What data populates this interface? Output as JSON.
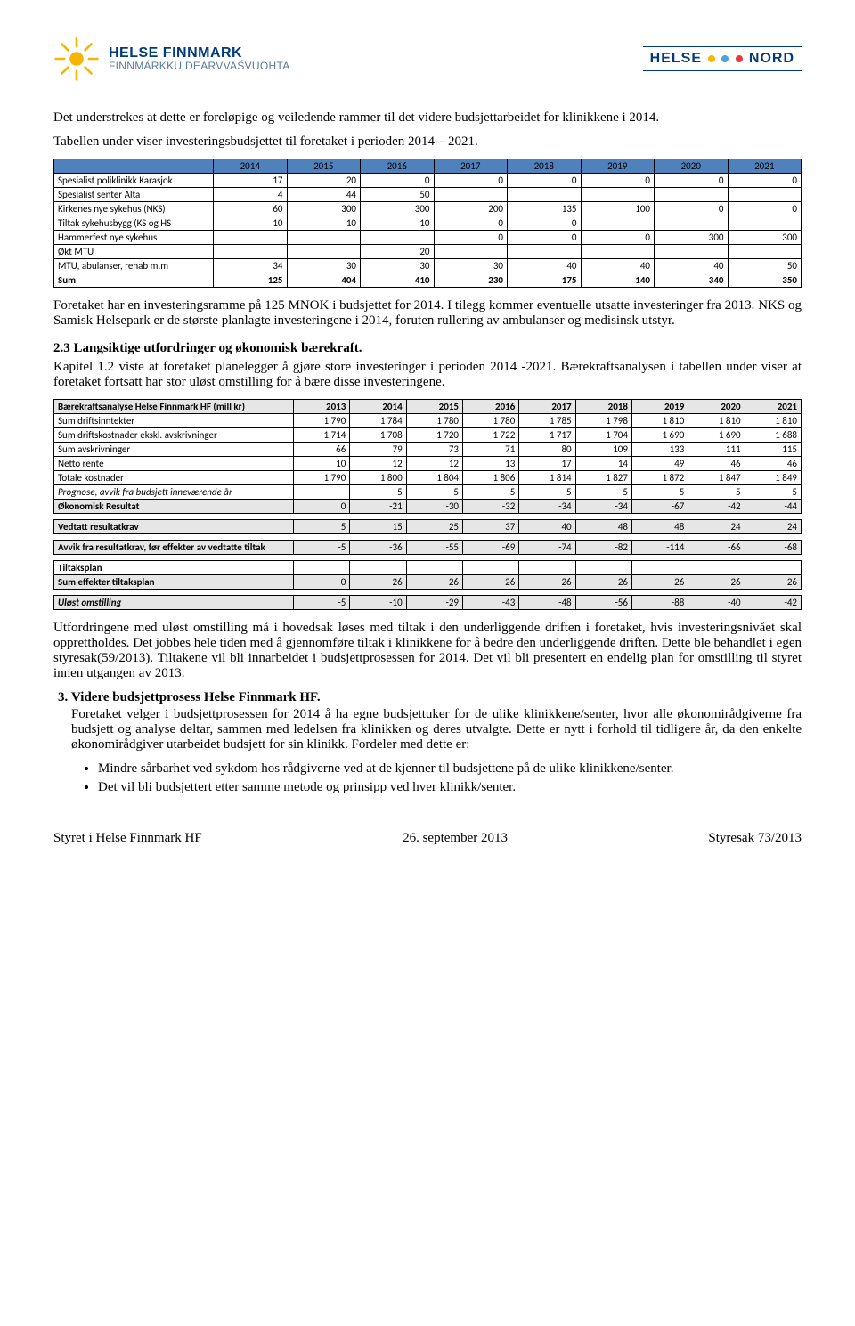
{
  "brand": {
    "title": "HELSE FINNMARK",
    "subtitle": "FINNMÁRKKU DEARVVAŠVUOHTA",
    "right_a": "HELSE",
    "right_b": "NORD",
    "dot_colors": [
      "#f7b500",
      "#4aa3df",
      "#e63946"
    ]
  },
  "p1": "Det understrekes at dette er foreløpige og veiledende rammer til det videre budsjettarbeidet for klinikkene i 2014.",
  "p2": "Tabellen under viser investeringsbudsjettet til foretaket i perioden 2014 – 2021.",
  "t1": {
    "years": [
      "2014",
      "2015",
      "2016",
      "2017",
      "2018",
      "2019",
      "2020",
      "2021"
    ],
    "rows": [
      {
        "label": "Spesialist poliklinikk Karasjok",
        "v": [
          "17",
          "20",
          "0",
          "0",
          "0",
          "0",
          "0",
          "0"
        ]
      },
      {
        "label": "Spesialist senter Alta",
        "v": [
          "4",
          "44",
          "50",
          "",
          "",
          "",
          "",
          ""
        ]
      },
      {
        "label": "Kirkenes nye sykehus (NKS)",
        "v": [
          "60",
          "300",
          "300",
          "200",
          "135",
          "100",
          "0",
          "0"
        ]
      },
      {
        "label": "Tiltak sykehusbygg (KS og HS",
        "v": [
          "10",
          "10",
          "10",
          "0",
          "0",
          "",
          "",
          ""
        ]
      },
      {
        "label": "Hammerfest nye sykehus",
        "v": [
          "",
          "",
          "",
          "0",
          "0",
          "0",
          "300",
          "300"
        ]
      },
      {
        "label": "Økt MTU",
        "v": [
          "",
          "",
          "20",
          "",
          "",
          "",
          "",
          ""
        ]
      },
      {
        "label": "MTU, abulanser, rehab m.m",
        "v": [
          "34",
          "30",
          "30",
          "30",
          "40",
          "40",
          "40",
          "50"
        ]
      }
    ],
    "sum": {
      "label": "Sum",
      "v": [
        "125",
        "404",
        "410",
        "230",
        "175",
        "140",
        "340",
        "350"
      ]
    }
  },
  "p3": "Foretaket har en investeringsramme på 125 MNOK i budsjettet for 2014. I tilegg kommer eventuelle utsatte investeringer fra 2013. NKS og Samisk Helsepark er de største planlagte investeringene i 2014, foruten rullering av ambulanser og medisinsk utstyr.",
  "h23": "2.3 Langsiktige utfordringer og økonomisk bærekraft.",
  "p4": "Kapitel 1.2 viste at foretaket planelegger å gjøre store investeringer i perioden 2014 -2021. Bærekraftsanalysen i tabellen under viser at foretaket fortsatt har stor uløst omstilling for å bære disse investeringene.",
  "t2": {
    "header": [
      "Bærekraftsanalyse Helse Finnmark HF (mill kr)",
      "2013",
      "2014",
      "2015",
      "2016",
      "2017",
      "2018",
      "2019",
      "2020",
      "2021"
    ],
    "rows": [
      {
        "c": [
          "Sum driftsinntekter",
          "1 790",
          "1 784",
          "1 780",
          "1 780",
          "1 785",
          "1 798",
          "1 810",
          "1 810",
          "1 810"
        ]
      },
      {
        "c": [
          "Sum driftskostnader ekskl. avskrivninger",
          "1 714",
          "1 708",
          "1 720",
          "1 722",
          "1 717",
          "1 704",
          "1 690",
          "1 690",
          "1 688"
        ]
      },
      {
        "c": [
          "Sum avskrivninger",
          "66",
          "79",
          "73",
          "71",
          "80",
          "109",
          "133",
          "111",
          "115"
        ]
      },
      {
        "c": [
          "Netto rente",
          "10",
          "12",
          "12",
          "13",
          "17",
          "14",
          "49",
          "46",
          "46"
        ]
      },
      {
        "c": [
          "Totale kostnader",
          "1 790",
          "1 800",
          "1 804",
          "1 806",
          "1 814",
          "1 827",
          "1 872",
          "1 847",
          "1 849"
        ]
      },
      {
        "c": [
          "Prognose, avvik fra budsjett inneværende år",
          "",
          "-5",
          "-5",
          "-5",
          "-5",
          "-5",
          "-5",
          "-5",
          "-5"
        ],
        "cls": "italic"
      },
      {
        "c": [
          "Økonomisk Resultat",
          "0",
          "-21",
          "-30",
          "-32",
          "-34",
          "-34",
          "-67",
          "-42",
          "-44"
        ],
        "cls": "shaded"
      }
    ],
    "vedtatt": {
      "c": [
        "Vedtatt resultatkrav",
        "5",
        "15",
        "25",
        "37",
        "40",
        "48",
        "48",
        "24",
        "24"
      ],
      "cls": "shaded"
    },
    "avvik": {
      "c": [
        "Avvik fra resultatkrav, før effekter av vedtatte tiltak",
        "-5",
        "-36",
        "-55",
        "-69",
        "-74",
        "-82",
        "-114",
        "-66",
        "-68"
      ],
      "cls": "shaded"
    },
    "tiltak_header": "Tiltaksplan",
    "tiltak_sum": {
      "c": [
        "Sum effekter tiltaksplan",
        "0",
        "26",
        "26",
        "26",
        "26",
        "26",
        "26",
        "26",
        "26"
      ],
      "cls": "shaded"
    },
    "ulost": {
      "c": [
        "Uløst omstilling",
        "-5",
        "-10",
        "-29",
        "-43",
        "-48",
        "-56",
        "-88",
        "-40",
        "-42"
      ],
      "cls": "shaded italic"
    }
  },
  "p5": "Utfordringene med uløst omstilling må i hovedsak løses med tiltak i den underliggende driften i foretaket, hvis investeringsnivået skal opprettholdes.  Det jobbes hele tiden med å gjennomføre tiltak i klinikkene for å bedre den underliggende driften. Dette ble behandlet i egen styresak(59/2013).  Tiltakene vil bli innarbeidet i budsjettprosessen for 2014. Det vil bli presentert en endelig plan for omstilling til styret innen utgangen av 2013.",
  "num3": {
    "title": "Videre budsjettprosess Helse Finnmark HF.",
    "body": "Foretaket velger i budsjettprosessen for 2014 å ha egne budsjettuker for de ulike klinikkene/senter, hvor alle økonomirådgiverne fra budsjett og analyse deltar, sammen med ledelsen fra klinikken og deres utvalgte. Dette er nytt i forhold til tidligere år, da den enkelte økonomirådgiver utarbeidet budsjett for sin klinikk. Fordeler med dette er:",
    "bullets": [
      "Mindre sårbarhet ved sykdom hos rådgiverne ved at de kjenner til budsjettene på de ulike klinikkene/senter.",
      "Det vil bli budsjettert etter samme metode og prinsipp ved hver klinikk/senter."
    ]
  },
  "footer": {
    "left": "Styret i Helse Finnmark HF",
    "center": "26. september 2013",
    "right": "Styresak 73/2013"
  }
}
